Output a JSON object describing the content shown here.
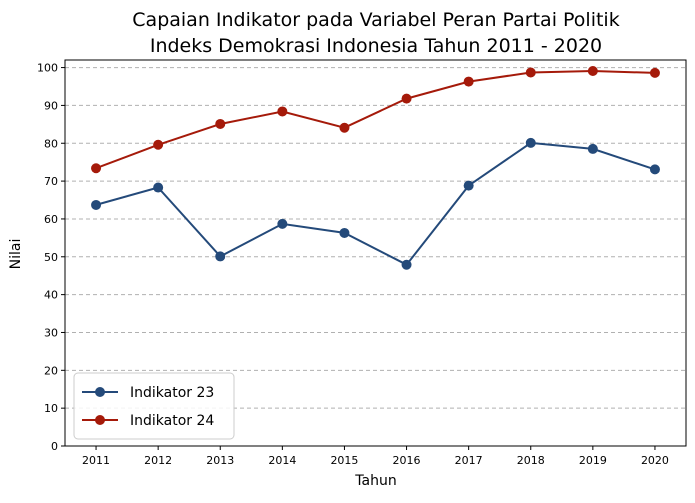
{
  "chart_data": {
    "type": "line",
    "title_line1": "Capaian Indikator pada Variabel Peran Partai Politik",
    "title_line2": "Indeks Demokrasi Indonesia Tahun 2011 - 2020",
    "xlabel": "Tahun",
    "ylabel": "Nilai",
    "x": [
      2011,
      2012,
      2013,
      2014,
      2015,
      2016,
      2017,
      2018,
      2019,
      2020
    ],
    "x_ticks": [
      "2011",
      "2012",
      "2013",
      "2014",
      "2015",
      "2016",
      "2017",
      "2018",
      "2019",
      "2020"
    ],
    "ylim": [
      0,
      102
    ],
    "y_ticks": [
      "0",
      "10",
      "20",
      "30",
      "40",
      "50",
      "60",
      "70",
      "80",
      "90",
      "100"
    ],
    "grid": "y-dashed",
    "legend_position": "lower-left",
    "series": [
      {
        "name": "Indikator 23",
        "color": "#244a7a",
        "values": [
          63.7,
          68.3,
          50.1,
          58.7,
          56.3,
          47.9,
          68.8,
          80.1,
          78.5,
          73.1
        ]
      },
      {
        "name": "Indikator 24",
        "color": "#a51a0a",
        "values": [
          73.4,
          79.6,
          85.1,
          88.4,
          84.1,
          91.8,
          96.3,
          98.7,
          99.1,
          98.6
        ]
      }
    ]
  }
}
